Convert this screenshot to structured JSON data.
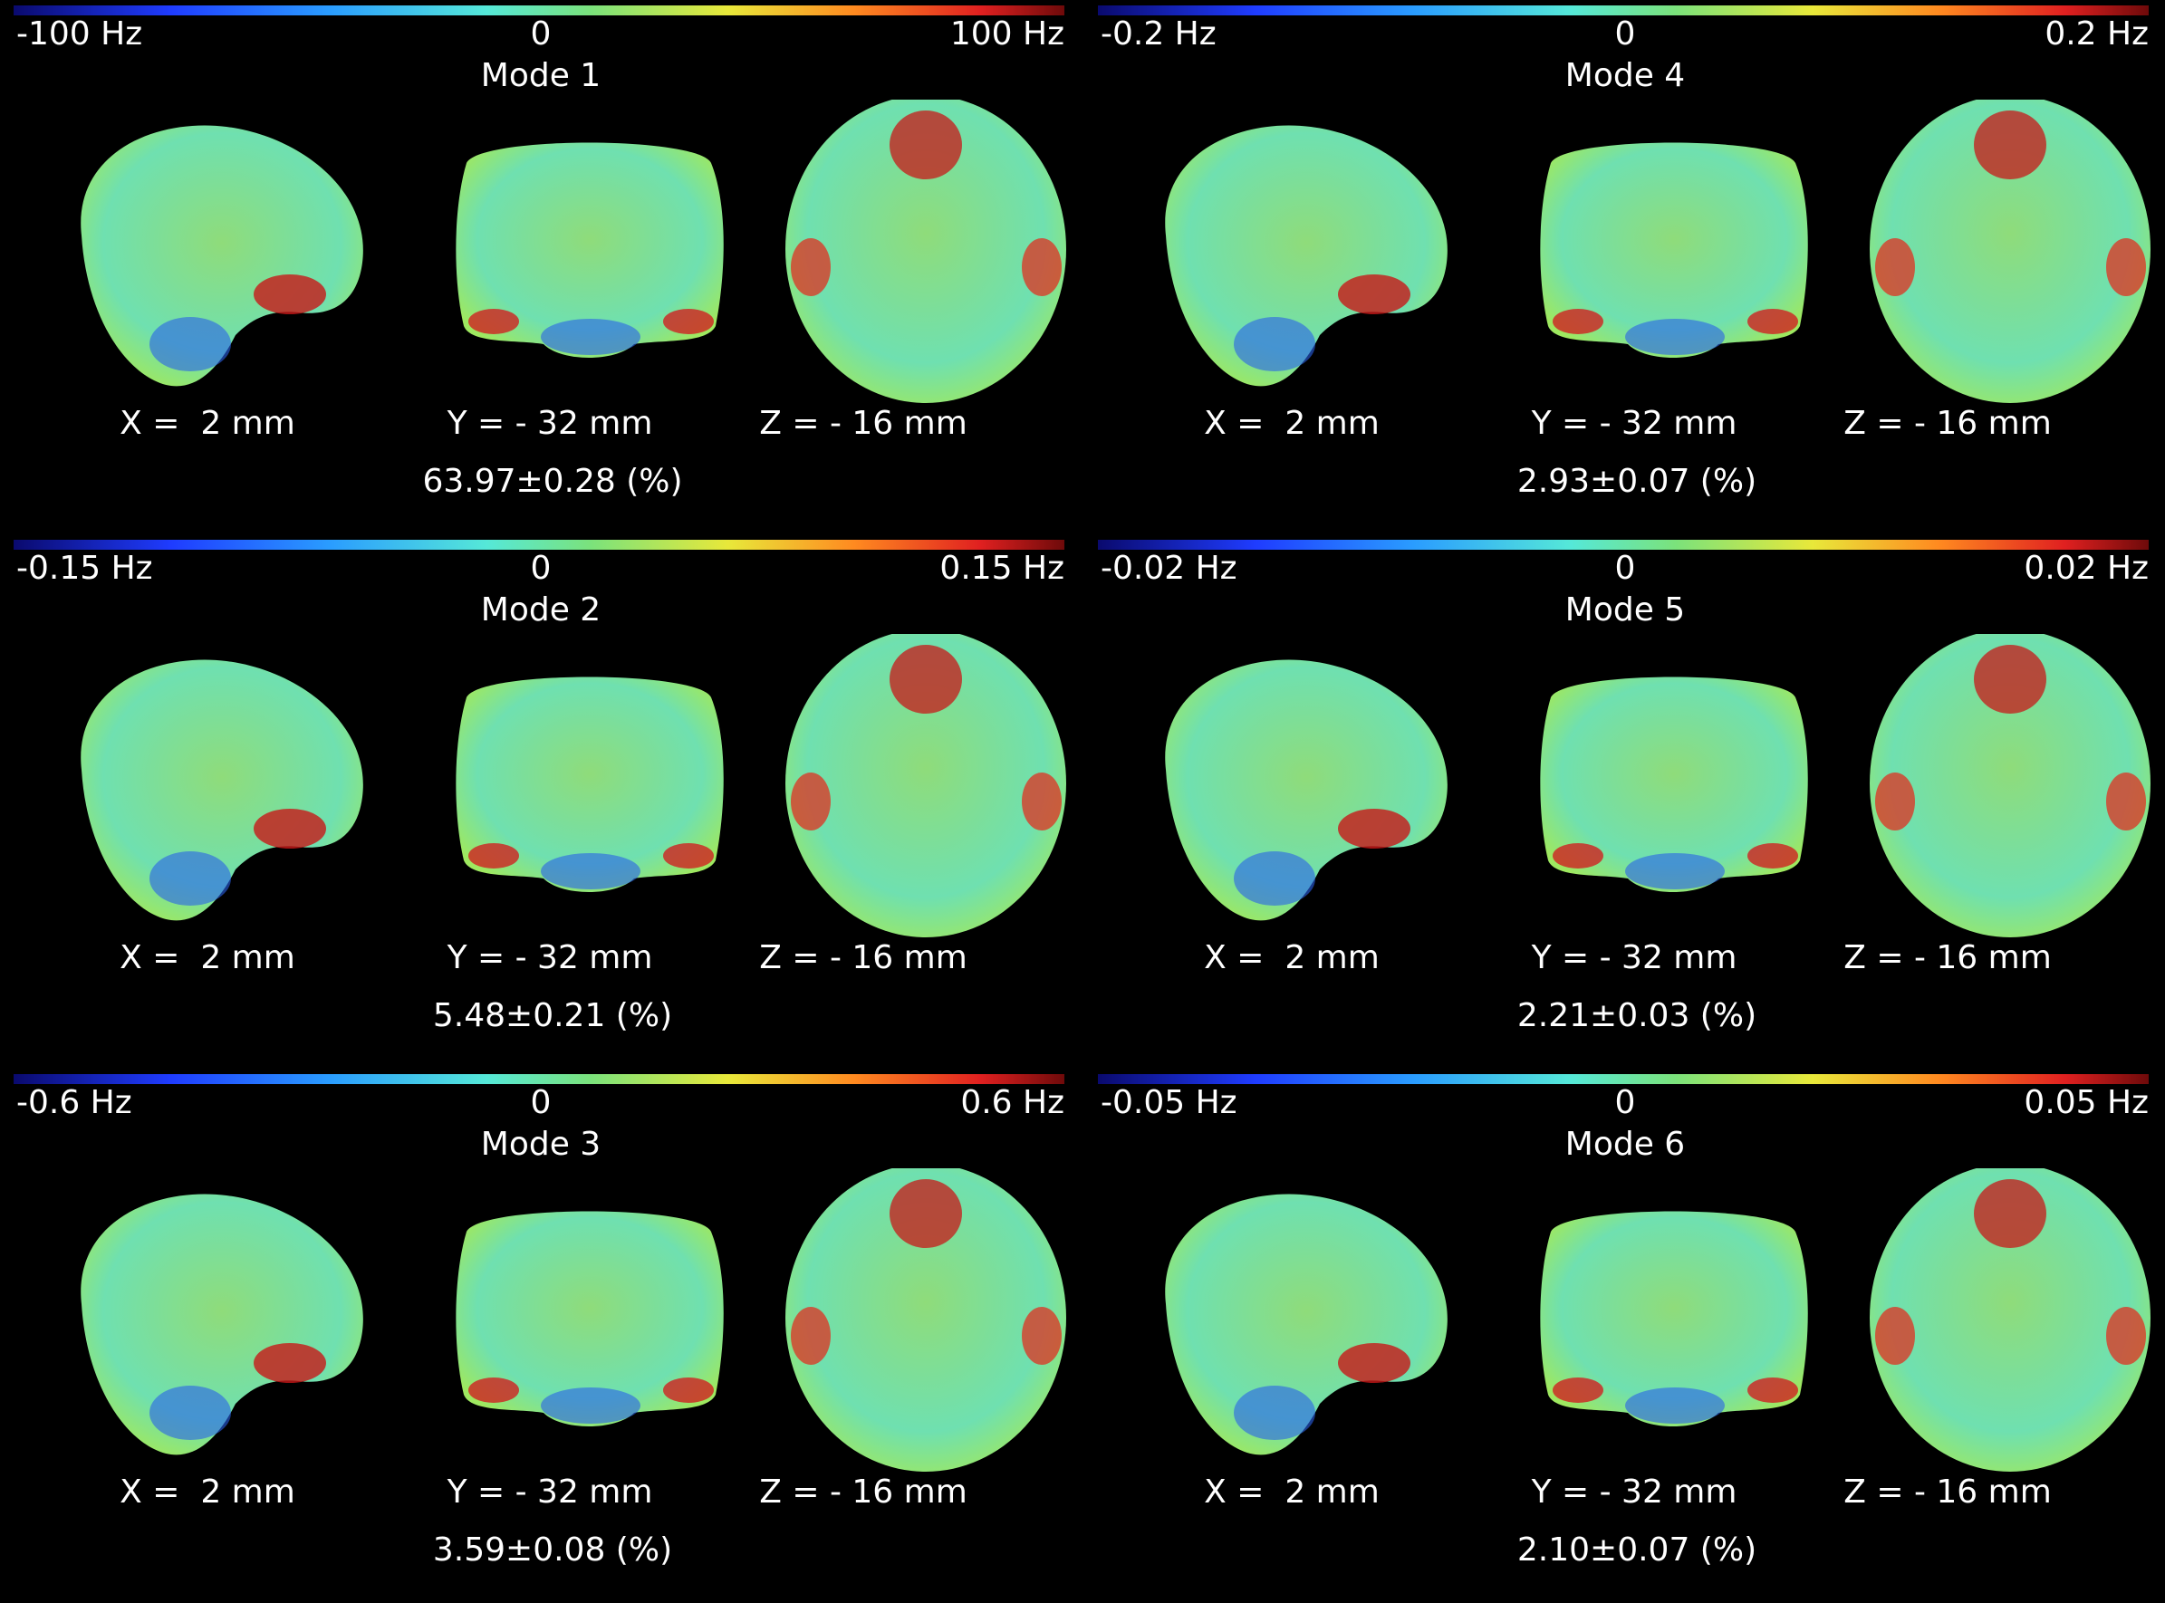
{
  "panels": [
    {
      "colorbar": {
        "min": "-100 Hz",
        "zero": "0",
        "max": "100 Hz"
      },
      "title": "Mode 1",
      "slices": [
        "X =  2 mm",
        "Y = - 32 mm",
        "Z = - 16 mm"
      ],
      "variance": "63.97±0.28 (%)"
    },
    {
      "colorbar": {
        "min": "-0.15 Hz",
        "zero": "0",
        "max": "0.15 Hz"
      },
      "title": "Mode 2",
      "slices": [
        "X =  2 mm",
        "Y = - 32 mm",
        "Z = - 16 mm"
      ],
      "variance": "5.48±0.21 (%)"
    },
    {
      "colorbar": {
        "min": "-0.6 Hz",
        "zero": "0",
        "max": "0.6 Hz"
      },
      "title": "Mode 3",
      "slices": [
        "X =  2 mm",
        "Y = - 32 mm",
        "Z = - 16 mm"
      ],
      "variance": "3.59±0.08 (%)"
    },
    {
      "colorbar": {
        "min": "-0.2 Hz",
        "zero": "0",
        "max": "0.2 Hz"
      },
      "title": "Mode 4",
      "slices": [
        "X =  2 mm",
        "Y = - 32 mm",
        "Z = - 16 mm"
      ],
      "variance": "2.93±0.07 (%)"
    },
    {
      "colorbar": {
        "min": "-0.02 Hz",
        "zero": "0",
        "max": "0.02 Hz"
      },
      "title": "Mode 5",
      "slices": [
        "X =  2 mm",
        "Y = - 32 mm",
        "Z = - 16 mm"
      ],
      "variance": "2.21±0.03 (%)"
    },
    {
      "colorbar": {
        "min": "-0.05 Hz",
        "zero": "0",
        "max": "0.05 Hz"
      },
      "title": "Mode 6",
      "slices": [
        "X =  2 mm",
        "Y = - 32 mm",
        "Z = - 16 mm"
      ],
      "variance": "2.10±0.07 (%)"
    }
  ]
}
